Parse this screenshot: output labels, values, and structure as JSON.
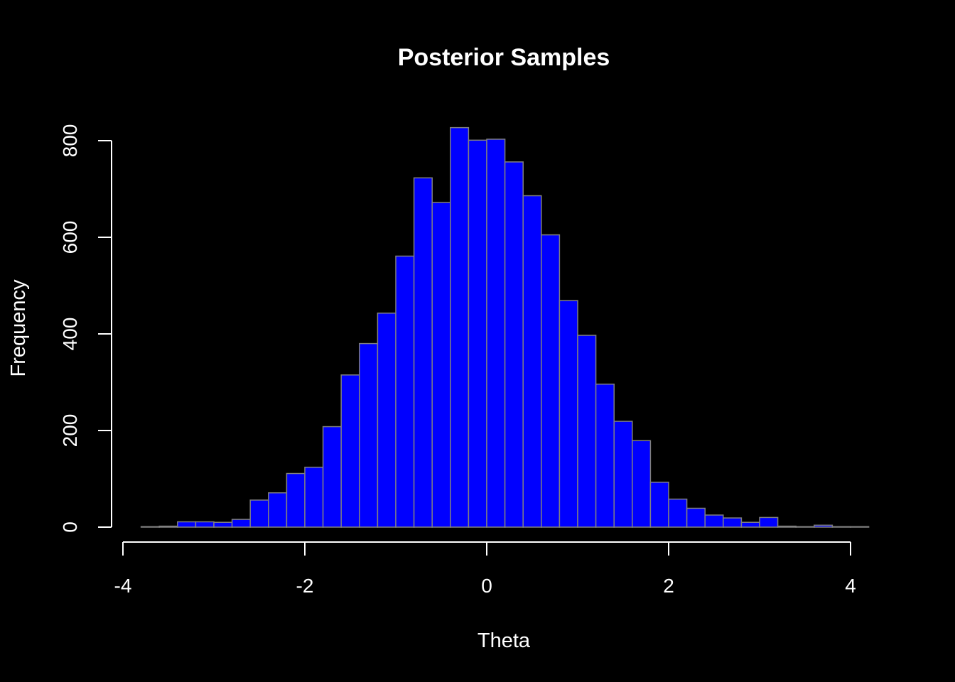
{
  "chart_data": {
    "type": "bar",
    "subtype": "histogram",
    "title": "Posterior Samples",
    "xlabel": "Theta",
    "ylabel": "Frequency",
    "bin_width": 0.2,
    "bin_start": -3.8,
    "xlim": [
      -4,
      4
    ],
    "ylim": [
      0,
      800
    ],
    "x_ticks": [
      -4,
      -2,
      0,
      2,
      4
    ],
    "x_tick_labels": [
      "-4",
      "-2",
      "0",
      "2",
      "4"
    ],
    "y_ticks": [
      0,
      200,
      400,
      600,
      800
    ],
    "y_tick_labels": [
      "0",
      "200",
      "400",
      "600",
      "800"
    ],
    "values": [
      1,
      2,
      11,
      11,
      10,
      16,
      56,
      71,
      111,
      124,
      208,
      315,
      380,
      443,
      561,
      723,
      672,
      827,
      801,
      803,
      756,
      686,
      605,
      469,
      397,
      296,
      219,
      179,
      93,
      58,
      39,
      25,
      19,
      10,
      20,
      2,
      1,
      4,
      1,
      1
    ],
    "grid": false,
    "legend": "none",
    "colors": {
      "background": "#000000",
      "bar_fill": "#0000ff",
      "bar_edge": "#808080",
      "axis": "#ffffff",
      "text": "#ffffff"
    }
  }
}
